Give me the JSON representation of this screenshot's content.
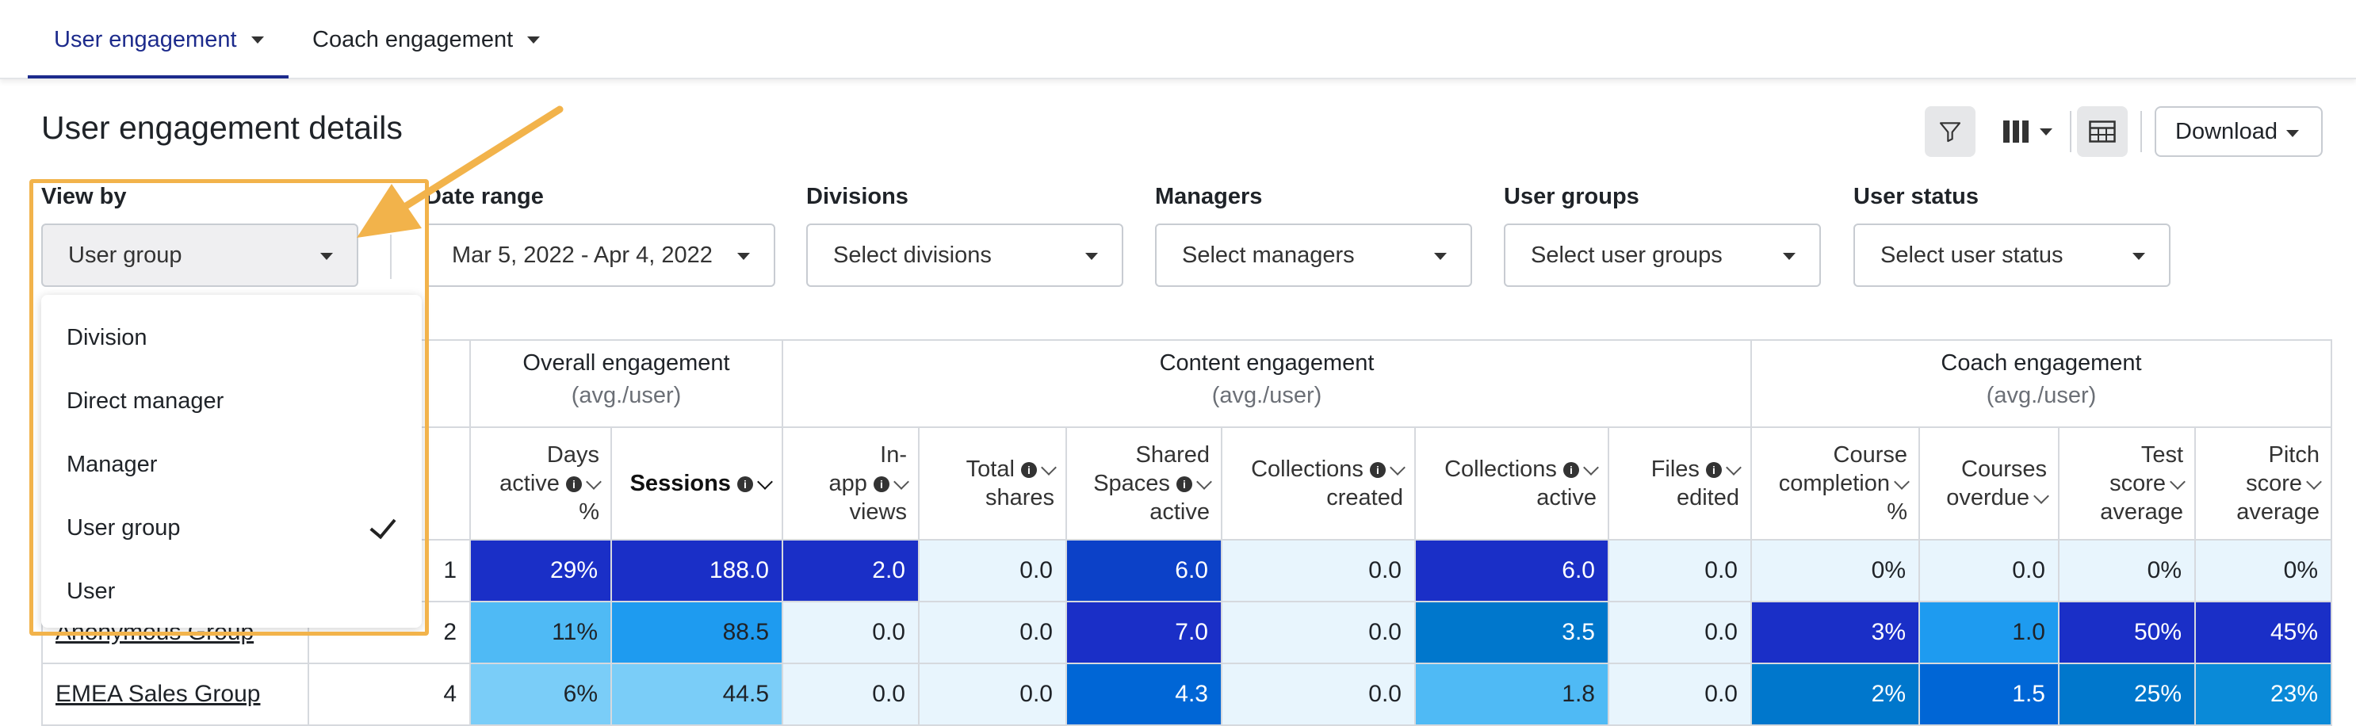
{
  "tabs": [
    {
      "label": "User engagement",
      "active": true
    },
    {
      "label": "Coach engagement",
      "active": false
    }
  ],
  "page_title": "User engagement details",
  "toolbar": {
    "download_label": "Download"
  },
  "filters": {
    "view_by": {
      "label": "View by",
      "value": "User group"
    },
    "date_range": {
      "label": "Date range",
      "value": "Mar 5, 2022 - Apr 4, 2022"
    },
    "divisions": {
      "label": "Divisions",
      "placeholder": "Select divisions"
    },
    "managers": {
      "label": "Managers",
      "placeholder": "Select managers"
    },
    "user_groups": {
      "label": "User groups",
      "placeholder": "Select user groups"
    },
    "user_status": {
      "label": "User status",
      "placeholder": "Select user status"
    }
  },
  "view_by_menu": {
    "items": [
      "Division",
      "Direct manager",
      "Manager",
      "User group",
      "User"
    ],
    "selected": "User group"
  },
  "table": {
    "groups": [
      {
        "title": "Overall engagement",
        "sub": "(avg./user)"
      },
      {
        "title": "Content engagement",
        "sub": "(avg./user)"
      },
      {
        "title": "Coach engagement",
        "sub": "(avg./user)"
      }
    ],
    "columns": {
      "days_active": [
        "Days",
        "active",
        "%"
      ],
      "sessions": "Sessions",
      "inapp": [
        "In-",
        "app",
        "views"
      ],
      "total_shares": [
        "Total",
        "shares"
      ],
      "shared_spaces": [
        "Shared",
        "Spaces",
        "active"
      ],
      "coll_created": [
        "Collections",
        "created"
      ],
      "coll_active": [
        "Collections",
        "active"
      ],
      "files_edited": [
        "Files",
        "edited"
      ],
      "course_completion": [
        "Course",
        "completion",
        "%"
      ],
      "courses_overdue": [
        "Courses",
        "overdue"
      ],
      "test_score": [
        "Test",
        "score",
        "average"
      ],
      "pitch_score": [
        "Pitch",
        "score",
        "average"
      ]
    },
    "rows": [
      {
        "name": "",
        "count": "1",
        "cells": [
          "29%",
          "188.0",
          "2.0",
          "0.0",
          "6.0",
          "0.0",
          "6.0",
          "0.0",
          "0%",
          "0.0",
          "0%",
          "0%"
        ]
      },
      {
        "name": "Anonymous Group",
        "count": "2",
        "cells": [
          "11%",
          "88.5",
          "0.0",
          "0.0",
          "7.0",
          "0.0",
          "3.5",
          "0.0",
          "3%",
          "1.0",
          "50%",
          "45%"
        ]
      },
      {
        "name": "EMEA Sales Group",
        "count": "4",
        "cells": [
          "6%",
          "44.5",
          "0.0",
          "0.0",
          "4.3",
          "0.0",
          "1.8",
          "0.0",
          "2%",
          "1.5",
          "25%",
          "23%"
        ]
      }
    ]
  }
}
